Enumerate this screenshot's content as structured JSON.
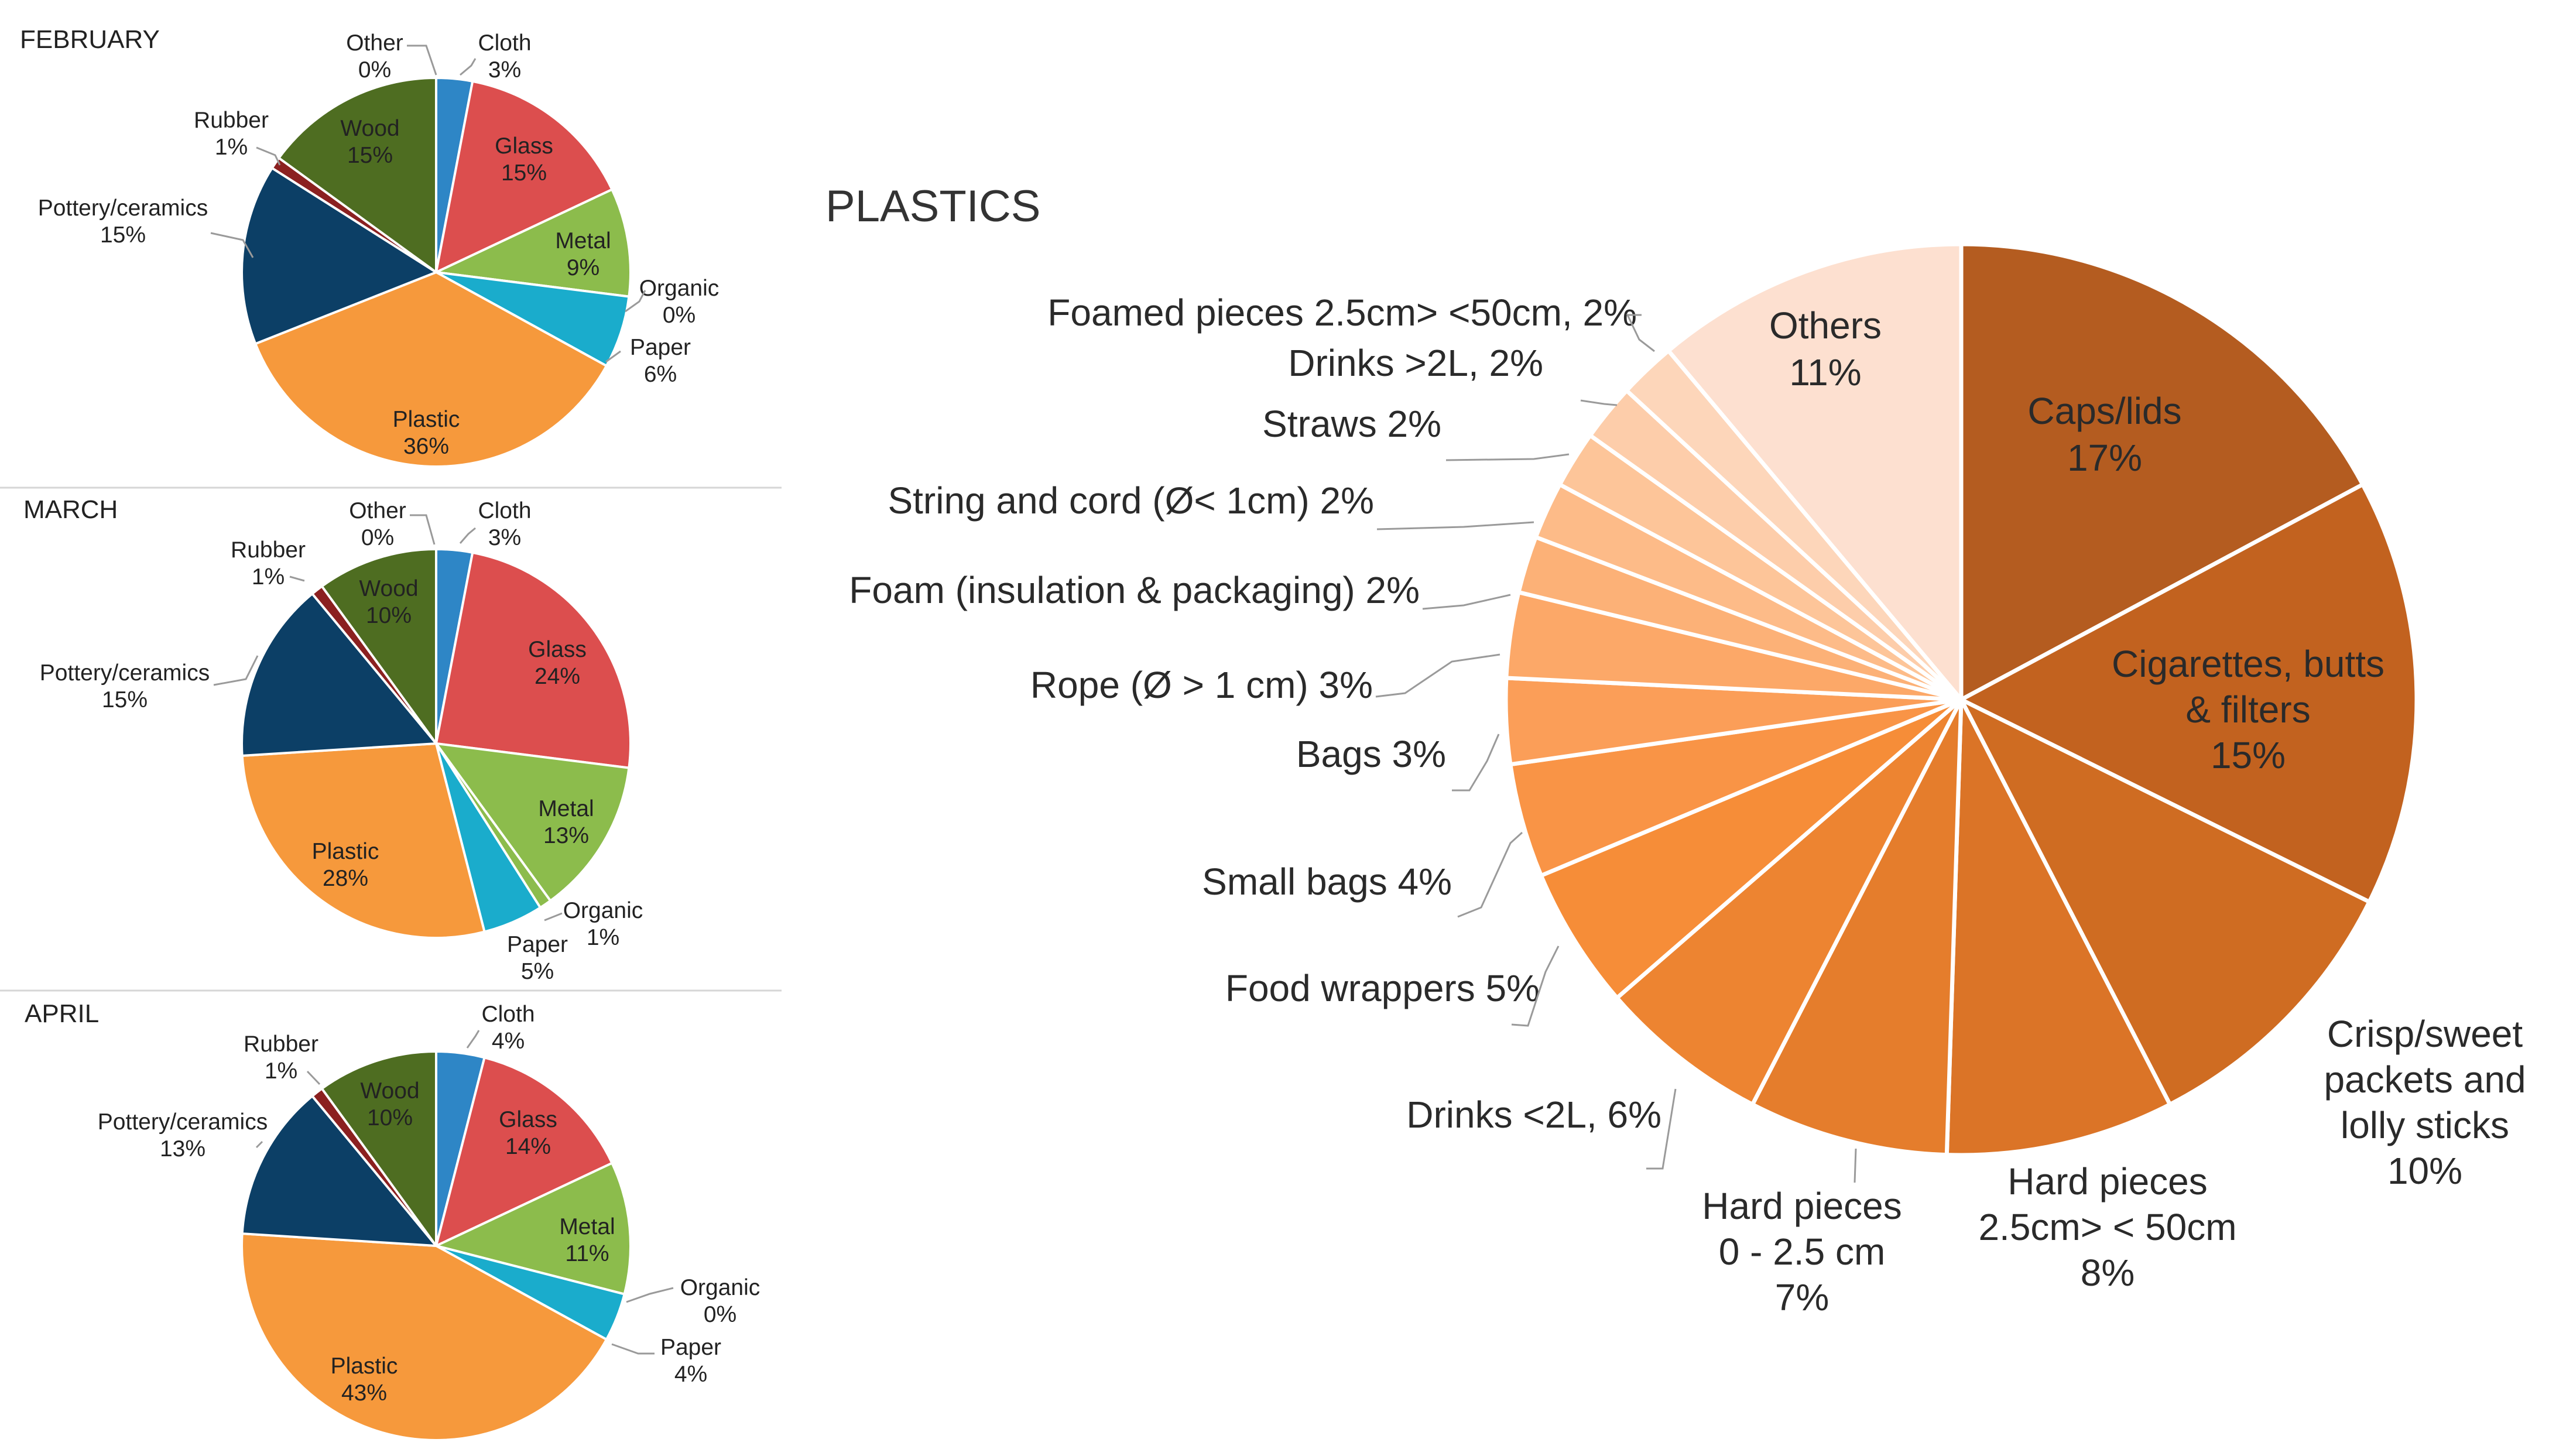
{
  "chart_data": [
    {
      "type": "pie",
      "title": "FEBRUARY",
      "categories": [
        "Cloth",
        "Glass",
        "Metal",
        "Organic",
        "Paper",
        "Plastic",
        "Pottery/ceramics",
        "Rubber",
        "Wood",
        "Other"
      ],
      "values": [
        3,
        15,
        9,
        0,
        6,
        36,
        15,
        1,
        15,
        0
      ],
      "labels": [
        "3%",
        "15%",
        "9%",
        "0%",
        "6%",
        "36%",
        "15%",
        "1%",
        "15%",
        "0%"
      ],
      "colors": [
        "#2e86c6",
        "#dc4e4e",
        "#8cbc4c",
        "#8cbc4c",
        "#1aaccc",
        "#f6993c",
        "#0c3f66",
        "#8b2020",
        "#4e6d21",
        "#ffffff"
      ]
    },
    {
      "type": "pie",
      "title": "MARCH",
      "categories": [
        "Cloth",
        "Glass",
        "Metal",
        "Organic",
        "Paper",
        "Plastic",
        "Pottery/ceramics",
        "Rubber",
        "Wood",
        "Other"
      ],
      "values": [
        3,
        24,
        13,
        1,
        5,
        28,
        15,
        1,
        10,
        0
      ],
      "labels": [
        "3%",
        "24%",
        "13%",
        "1%",
        "5%",
        "28%",
        "15%",
        "1%",
        "10%",
        "0%"
      ],
      "colors": [
        "#2e86c6",
        "#dc4e4e",
        "#8cbc4c",
        "#8cbc4c",
        "#1aaccc",
        "#f6993c",
        "#0c3f66",
        "#8b2020",
        "#4e6d21",
        "#ffffff"
      ]
    },
    {
      "type": "pie",
      "title": "APRIL",
      "categories": [
        "Cloth",
        "Glass",
        "Metal",
        "Organic",
        "Paper",
        "Plastic",
        "Pottery/ceramics",
        "Rubber",
        "Wood"
      ],
      "values": [
        4,
        14,
        11,
        0,
        4,
        43,
        13,
        1,
        10
      ],
      "labels": [
        "4%",
        "14%",
        "11%",
        "0%",
        "4%",
        "43%",
        "13%",
        "1%",
        "10%"
      ],
      "colors": [
        "#2e86c6",
        "#dc4e4e",
        "#8cbc4c",
        "#8cbc4c",
        "#1aaccc",
        "#f6993c",
        "#0c3f66",
        "#8b2020",
        "#4e6d21"
      ]
    },
    {
      "type": "pie",
      "title": "PLASTICS",
      "categories": [
        "Caps/lids",
        "Cigarettes, butts & filters",
        "Crisp/sweet packets and lolly sticks",
        "Hard pieces 2.5cm> < 50cm",
        "Hard pieces 0 - 2.5 cm",
        "Drinks <2L",
        "Food wrappers",
        "Small bags",
        "Bags",
        "Rope (Ø > 1 cm)",
        "Foam (insulation & packaging)",
        "String and cord (Ø< 1cm)",
        "Straws",
        "Drinks >2L",
        "Foamed pieces 2.5cm> <50cm",
        "Others"
      ],
      "values": [
        17,
        15,
        10,
        8,
        7,
        6,
        5,
        4,
        3,
        3,
        2,
        2,
        2,
        2,
        2,
        11
      ],
      "labels": [
        "17%",
        "15%",
        "10%",
        "8%",
        "7%",
        "6%",
        "5%",
        "4%",
        "3%",
        "3%",
        "2%",
        "2%",
        "2%",
        "2%",
        "2%",
        "11%"
      ],
      "colors": [
        "#b45c20",
        "#c2621f",
        "#cf6c22",
        "#db7427",
        "#e57d2c",
        "#ed8431",
        "#f68d38",
        "#f99446",
        "#fb9e58",
        "#fca868",
        "#fcb177",
        "#fdbb88",
        "#fdc599",
        "#fdcdaa",
        "#fdd6ba",
        "#fde0d0"
      ]
    }
  ]
}
